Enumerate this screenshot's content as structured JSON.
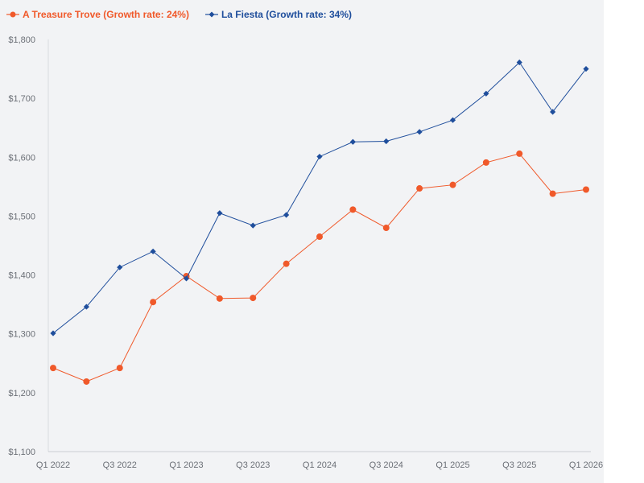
{
  "chart_data": {
    "type": "line",
    "title": "",
    "xlabel": "",
    "ylabel": "",
    "categories": [
      "Q1 2022",
      "Q2 2022",
      "Q3 2022",
      "Q4 2022",
      "Q1 2023",
      "Q2 2023",
      "Q3 2023",
      "Q4 2023",
      "Q1 2024",
      "Q2 2024",
      "Q3 2024",
      "Q4 2024",
      "Q1 2025",
      "Q2 2025",
      "Q3 2025",
      "Q4 2025",
      "Q1 2026"
    ],
    "x_tick_labels": [
      "Q1 2022",
      "",
      "Q3 2022",
      "",
      "Q1 2023",
      "",
      "Q3 2023",
      "",
      "Q1 2024",
      "",
      "Q3 2024",
      "",
      "Q1 2025",
      "",
      "Q3 2025",
      "",
      "Q1 2026"
    ],
    "ylim": [
      1100,
      1800
    ],
    "y_ticks": [
      1100,
      1200,
      1300,
      1400,
      1500,
      1600,
      1700,
      1800
    ],
    "y_tick_labels": [
      "$1,100",
      "$1,200",
      "$1,300",
      "$1,400",
      "$1,500",
      "$1,600",
      "$1,700",
      "$1,800"
    ],
    "grid": false,
    "legend_position": "top-left",
    "series": [
      {
        "name": "A Treasure Trove (Growth rate: 24%)",
        "color": "#f0592a",
        "marker": "circle",
        "values": [
          1242,
          1219,
          1242,
          1354,
          1398,
          1360,
          1361,
          1419,
          1465,
          1511,
          1480,
          1547,
          1553,
          1591,
          1606,
          1538,
          1545
        ]
      },
      {
        "name": "La Fiesta (Growth rate: 34%)",
        "color": "#1f4e9c",
        "marker": "diamond",
        "values": [
          1301,
          1346,
          1413,
          1440,
          1394,
          1505,
          1484,
          1502,
          1601,
          1626,
          1627,
          1643,
          1663,
          1708,
          1761,
          1677,
          1750
        ]
      }
    ]
  }
}
